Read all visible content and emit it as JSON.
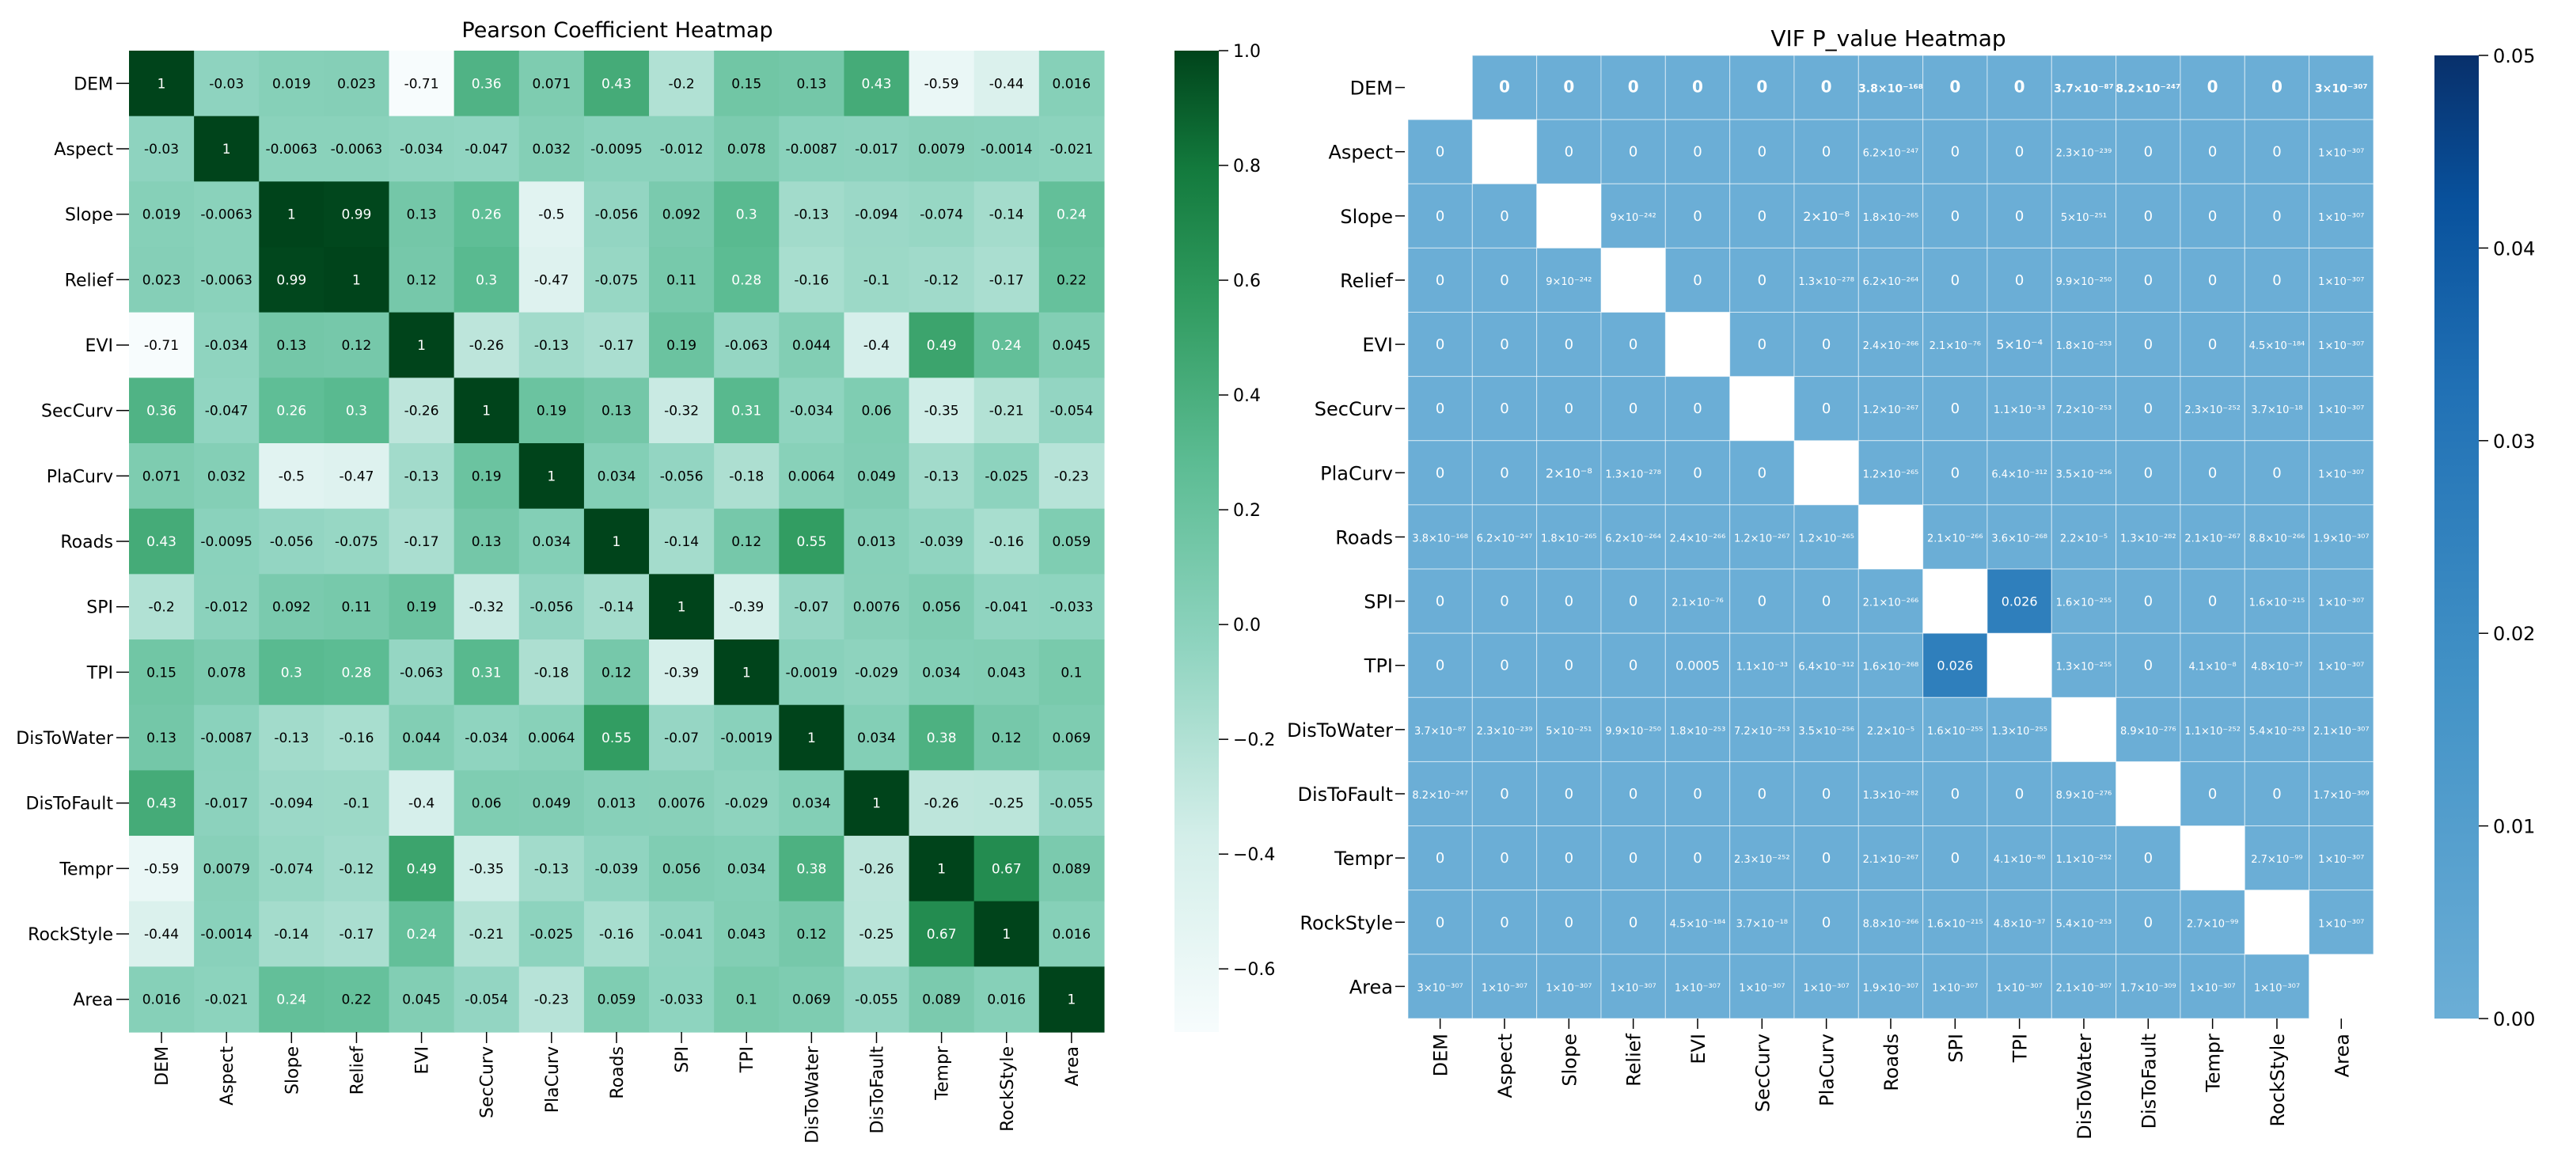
{
  "chart_data": [
    {
      "type": "heatmap",
      "title": "Pearson Coefficient Heatmap",
      "rows": [
        "DEM",
        "Aspect",
        "Slope",
        "Relief",
        "EVI",
        "SecCurv",
        "PlaCurv",
        "Roads",
        "SPI",
        "TPI",
        "DisToWater",
        "DisToFault",
        "Tempr",
        "RockStyle",
        "Area"
      ],
      "columns": [
        "DEM",
        "Aspect",
        "Slope",
        "Relief",
        "EVI",
        "SecCurv",
        "PlaCurv",
        "Roads",
        "SPI",
        "TPI",
        "DisToWater",
        "DisToFault",
        "Tempr",
        "RockStyle",
        "Area"
      ],
      "values": [
        [
          1,
          -0.03,
          0.019,
          0.023,
          -0.71,
          0.36,
          0.071,
          0.43,
          -0.2,
          0.15,
          0.13,
          0.43,
          -0.59,
          -0.44,
          0.016
        ],
        [
          -0.03,
          1,
          -0.0063,
          -0.0063,
          -0.034,
          -0.047,
          0.032,
          -0.0095,
          -0.012,
          0.078,
          -0.0087,
          -0.017,
          0.0079,
          -0.0014,
          -0.021
        ],
        [
          0.019,
          -0.0063,
          1,
          0.99,
          0.13,
          0.26,
          -0.5,
          -0.056,
          0.092,
          0.3,
          -0.13,
          -0.094,
          -0.074,
          -0.14,
          0.24
        ],
        [
          0.023,
          -0.0063,
          0.99,
          1,
          0.12,
          0.3,
          -0.47,
          -0.075,
          0.11,
          0.28,
          -0.16,
          -0.1,
          -0.12,
          -0.17,
          0.22
        ],
        [
          -0.71,
          -0.034,
          0.13,
          0.12,
          1,
          -0.26,
          -0.13,
          -0.17,
          0.19,
          -0.063,
          0.044,
          -0.4,
          0.49,
          0.24,
          0.045
        ],
        [
          0.36,
          -0.047,
          0.26,
          0.3,
          -0.26,
          1,
          0.19,
          0.13,
          -0.32,
          0.31,
          -0.034,
          0.06,
          -0.35,
          -0.21,
          -0.054
        ],
        [
          0.071,
          0.032,
          -0.5,
          -0.47,
          -0.13,
          0.19,
          1,
          0.034,
          -0.056,
          -0.18,
          0.0064,
          0.049,
          -0.13,
          -0.025,
          -0.23
        ],
        [
          0.43,
          -0.0095,
          -0.056,
          -0.075,
          -0.17,
          0.13,
          0.034,
          1,
          -0.14,
          0.12,
          0.55,
          0.013,
          -0.039,
          -0.16,
          0.059
        ],
        [
          -0.2,
          -0.012,
          0.092,
          0.11,
          0.19,
          -0.32,
          -0.056,
          -0.14,
          1,
          -0.39,
          -0.07,
          0.0076,
          0.056,
          -0.041,
          -0.033
        ],
        [
          0.15,
          0.078,
          0.3,
          0.28,
          -0.063,
          0.31,
          -0.18,
          0.12,
          -0.39,
          1,
          -0.0019,
          -0.029,
          0.034,
          0.043,
          0.1
        ],
        [
          0.13,
          -0.0087,
          -0.13,
          -0.16,
          0.044,
          -0.034,
          0.0064,
          0.55,
          -0.07,
          -0.0019,
          1,
          0.034,
          0.38,
          0.12,
          0.069
        ],
        [
          0.43,
          -0.017,
          -0.094,
          -0.1,
          -0.4,
          0.06,
          0.049,
          0.013,
          0.0076,
          -0.029,
          0.034,
          1,
          -0.26,
          -0.25,
          -0.055
        ],
        [
          -0.59,
          0.0079,
          -0.074,
          -0.12,
          0.49,
          -0.35,
          -0.13,
          -0.039,
          0.056,
          0.034,
          0.38,
          -0.26,
          1,
          0.67,
          0.089
        ],
        [
          -0.44,
          -0.0014,
          -0.14,
          -0.17,
          0.24,
          -0.21,
          -0.025,
          -0.16,
          -0.041,
          0.043,
          0.12,
          -0.25,
          0.67,
          1,
          0.016
        ],
        [
          0.016,
          -0.021,
          0.24,
          0.22,
          0.045,
          -0.054,
          -0.23,
          0.059,
          -0.033,
          0.1,
          0.069,
          -0.055,
          0.089,
          0.016,
          1
        ]
      ],
      "labels": [
        [
          "1",
          "-0.03",
          "0.019",
          "0.023",
          "-0.71",
          "0.36",
          "0.071",
          "0.43",
          "-0.2",
          "0.15",
          "0.13",
          "0.43",
          "-0.59",
          "-0.44",
          "0.016"
        ],
        [
          "-0.03",
          "1",
          "-0.0063",
          "-0.0063",
          "-0.034",
          "-0.047",
          "0.032",
          "-0.0095",
          "-0.012",
          "0.078",
          "-0.0087",
          "-0.017",
          "0.0079",
          "-0.0014",
          "-0.021"
        ],
        [
          "0.019",
          "-0.0063",
          "1",
          "0.99",
          "0.13",
          "0.26",
          "-0.5",
          "-0.056",
          "0.092",
          "0.3",
          "-0.13",
          "-0.094",
          "-0.074",
          "-0.14",
          "0.24"
        ],
        [
          "0.023",
          "-0.0063",
          "0.99",
          "1",
          "0.12",
          "0.3",
          "-0.47",
          "-0.075",
          "0.11",
          "0.28",
          "-0.16",
          "-0.1",
          "-0.12",
          "-0.17",
          "0.22"
        ],
        [
          "-0.71",
          "-0.034",
          "0.13",
          "0.12",
          "1",
          "-0.26",
          "-0.13",
          "-0.17",
          "0.19",
          "-0.063",
          "0.044",
          "-0.4",
          "0.49",
          "0.24",
          "0.045"
        ],
        [
          "0.36",
          "-0.047",
          "0.26",
          "0.3",
          "-0.26",
          "1",
          "0.19",
          "0.13",
          "-0.32",
          "0.31",
          "-0.034",
          "0.06",
          "-0.35",
          "-0.21",
          "-0.054"
        ],
        [
          "0.071",
          "0.032",
          "-0.5",
          "-0.47",
          "-0.13",
          "0.19",
          "1",
          "0.034",
          "-0.056",
          "-0.18",
          "0.0064",
          "0.049",
          "-0.13",
          "-0.025",
          "-0.23"
        ],
        [
          "0.43",
          "-0.0095",
          "-0.056",
          "-0.075",
          "-0.17",
          "0.13",
          "0.034",
          "1",
          "-0.14",
          "0.12",
          "0.55",
          "0.013",
          "-0.039",
          "-0.16",
          "0.059"
        ],
        [
          "-0.2",
          "-0.012",
          "0.092",
          "0.11",
          "0.19",
          "-0.32",
          "-0.056",
          "-0.14",
          "1",
          "-0.39",
          "-0.07",
          "0.0076",
          "0.056",
          "-0.041",
          "-0.033"
        ],
        [
          "0.15",
          "0.078",
          "0.3",
          "0.28",
          "-0.063",
          "0.31",
          "-0.18",
          "0.12",
          "-0.39",
          "1",
          "-0.0019",
          "-0.029",
          "0.034",
          "0.043",
          "0.1"
        ],
        [
          "0.13",
          "-0.0087",
          "-0.13",
          "-0.16",
          "0.044",
          "-0.034",
          "0.0064",
          "0.55",
          "-0.07",
          "-0.0019",
          "1",
          "0.034",
          "0.38",
          "0.12",
          "0.069"
        ],
        [
          "0.43",
          "-0.017",
          "-0.094",
          "-0.1",
          "-0.4",
          "0.06",
          "0.049",
          "0.013",
          "0.0076",
          "-0.029",
          "0.034",
          "1",
          "-0.26",
          "-0.25",
          "-0.055"
        ],
        [
          "-0.59",
          "0.0079",
          "-0.074",
          "-0.12",
          "0.49",
          "-0.35",
          "-0.13",
          "-0.039",
          "0.056",
          "0.034",
          "0.38",
          "-0.26",
          "1",
          "0.67",
          "0.089"
        ],
        [
          "-0.44",
          "-0.0014",
          "-0.14",
          "-0.17",
          "0.24",
          "-0.21",
          "-0.025",
          "-0.16",
          "-0.041",
          "0.043",
          "0.12",
          "-0.25",
          "0.67",
          "1",
          "0.016"
        ],
        [
          "0.016",
          "-0.021",
          "0.24",
          "0.22",
          "0.045",
          "-0.054",
          "-0.23",
          "0.059",
          "-0.033",
          "0.1",
          "0.069",
          "-0.055",
          "0.089",
          "0.016",
          "1"
        ]
      ],
      "colorbar": {
        "colormap": "BuGn",
        "range": [
          -0.71,
          1
        ],
        "ticks": [
          -0.6,
          -0.4,
          -0.2,
          0.0,
          0.2,
          0.4,
          0.6,
          0.8,
          1.0
        ],
        "tick_labels": [
          "−0.6",
          "−0.4",
          "−0.2",
          "0.0",
          "0.2",
          "0.4",
          "0.6",
          "0.8",
          "1.0"
        ]
      }
    },
    {
      "type": "heatmap",
      "title": "VIF P_value Heatmap",
      "rows": [
        "DEM",
        "Aspect",
        "Slope",
        "Relief",
        "EVI",
        "SecCurv",
        "PlaCurv",
        "Roads",
        "SPI",
        "TPI",
        "DisToWater",
        "DisToFault",
        "Tempr",
        "RockStyle",
        "Area"
      ],
      "columns": [
        "DEM",
        "Aspect",
        "Slope",
        "Relief",
        "EVI",
        "SecCurv",
        "PlaCurv",
        "Roads",
        "SPI",
        "TPI",
        "DisToWater",
        "DisToFault",
        "Tempr",
        "RockStyle",
        "Area"
      ],
      "values": [
        [
          null,
          0,
          0,
          0,
          0,
          0,
          0,
          3.8e-168,
          0,
          0,
          3.7e-87,
          8.2e-247,
          0,
          0,
          3e-307
        ],
        [
          0,
          null,
          0,
          0,
          0,
          0,
          0,
          6.2e-247,
          0,
          0,
          2.3e-239,
          0,
          0,
          0,
          1e-307
        ],
        [
          0,
          0,
          null,
          9e-242,
          0,
          0,
          2e-08,
          1.8e-265,
          0,
          0,
          5e-251,
          0,
          0,
          0,
          1e-307
        ],
        [
          0,
          0,
          9e-242,
          null,
          0,
          0,
          1.3e-278,
          6.2e-264,
          0,
          0,
          9.9e-250,
          0,
          0,
          0,
          1e-307
        ],
        [
          0,
          0,
          0,
          0,
          null,
          0,
          0,
          2.4e-266,
          2.1e-76,
          0.0005,
          1.8e-253,
          0,
          0,
          4.5e-184,
          1e-307
        ],
        [
          0,
          0,
          0,
          0,
          0,
          null,
          0,
          1.2e-267,
          0,
          1.1e-33,
          7.2e-253,
          0,
          2.3e-252,
          3.7e-18,
          1e-307
        ],
        [
          0,
          0,
          2e-08,
          1.3e-278,
          0,
          0,
          null,
          1.2e-265,
          0,
          6.4e-312,
          3.5e-256,
          0,
          0,
          0,
          1e-307
        ],
        [
          3.8e-168,
          6.2e-247,
          1.8e-265,
          6.2e-264,
          2.4e-266,
          1.2e-267,
          1.2e-265,
          null,
          2.1e-266,
          3.6e-268,
          2.2e-05,
          1.3e-282,
          2.1e-267,
          8.8e-266,
          1.9e-307
        ],
        [
          0,
          0,
          0,
          0,
          2.1e-76,
          0,
          0,
          2.1e-266,
          null,
          0.026,
          1.6e-255,
          0,
          0,
          1.6e-215,
          1e-307
        ],
        [
          0,
          0,
          0,
          0,
          0.0005,
          1.1e-33,
          6.4e-312,
          1.6e-268,
          0.026,
          null,
          1.3e-255,
          0,
          4.1e-08,
          4.8e-37,
          1e-307
        ],
        [
          3.7e-87,
          2.3e-239,
          5e-251,
          9.9e-250,
          1.8e-253,
          7.2e-253,
          3.5e-256,
          2.2e-05,
          1.6e-255,
          1.3e-255,
          null,
          8.9e-276,
          1.1e-252,
          5.4e-253,
          2.1e-307
        ],
        [
          8.2e-247,
          0,
          0,
          0,
          0,
          0,
          0,
          1.3e-282,
          0,
          0,
          8.9e-276,
          null,
          0,
          0,
          1.7e-309
        ],
        [
          0,
          0,
          0,
          0,
          0,
          2.3e-252,
          0,
          2.1e-267,
          0,
          4.1e-80,
          1.1e-252,
          0,
          null,
          2.7e-99,
          1e-307
        ],
        [
          0,
          0,
          0,
          0,
          4.5e-184,
          3.7e-18,
          0,
          8.8e-266,
          1.6e-215,
          4.8e-37,
          5.4e-253,
          0,
          2.7e-99,
          null,
          1e-307
        ],
        [
          3e-307,
          1e-307,
          1e-307,
          1e-307,
          1e-307,
          1e-307,
          1e-307,
          1.9e-307,
          1e-307,
          1e-307,
          2.1e-307,
          1.7e-309,
          1e-307,
          1e-307,
          null
        ]
      ],
      "labels": [
        [
          "",
          "0",
          "0",
          "0",
          "0",
          "0",
          "0",
          "3.8×10⁻¹⁶⁸",
          "0",
          "0",
          "3.7×10⁻⁸⁷",
          "8.2×10⁻²⁴⁷",
          "0",
          "0",
          "3×10⁻³⁰⁷"
        ],
        [
          "0",
          "",
          "0",
          "0",
          "0",
          "0",
          "0",
          "6.2×10⁻²⁴⁷",
          "0",
          "0",
          "2.3×10⁻²³⁹",
          "0",
          "0",
          "0",
          "1×10⁻³⁰⁷"
        ],
        [
          "0",
          "0",
          "",
          "9×10⁻²⁴²",
          "0",
          "0",
          "2×10⁻⁸",
          "1.8×10⁻²⁶⁵",
          "0",
          "0",
          "5×10⁻²⁵¹",
          "0",
          "0",
          "0",
          "1×10⁻³⁰⁷"
        ],
        [
          "0",
          "0",
          "9×10⁻²⁴²",
          "",
          "0",
          "0",
          "1.3×10⁻²⁷⁸",
          "6.2×10⁻²⁶⁴",
          "0",
          "0",
          "9.9×10⁻²⁵⁰",
          "0",
          "0",
          "0",
          "1×10⁻³⁰⁷"
        ],
        [
          "0",
          "0",
          "0",
          "0",
          "",
          "0",
          "0",
          "2.4×10⁻²⁶⁶",
          "2.1×10⁻⁷⁶",
          "5×10⁻⁴",
          "1.8×10⁻²⁵³",
          "0",
          "0",
          "4.5×10⁻¹⁸⁴",
          "1×10⁻³⁰⁷"
        ],
        [
          "0",
          "0",
          "0",
          "0",
          "0",
          "",
          "0",
          "1.2×10⁻²⁶⁷",
          "0",
          "1.1×10⁻³³",
          "7.2×10⁻²⁵³",
          "0",
          "2.3×10⁻²⁵²",
          "3.7×10⁻¹⁸",
          "1×10⁻³⁰⁷"
        ],
        [
          "0",
          "0",
          "2×10⁻⁸",
          "1.3×10⁻²⁷⁸",
          "0",
          "0",
          "",
          "1.2×10⁻²⁶⁵",
          "0",
          "6.4×10⁻³¹²",
          "3.5×10⁻²⁵⁶",
          "0",
          "0",
          "0",
          "1×10⁻³⁰⁷"
        ],
        [
          "3.8×10⁻¹⁶⁸",
          "6.2×10⁻²⁴⁷",
          "1.8×10⁻²⁶⁵",
          "6.2×10⁻²⁶⁴",
          "2.4×10⁻²⁶⁶",
          "1.2×10⁻²⁶⁷",
          "1.2×10⁻²⁶⁵",
          "",
          "2.1×10⁻²⁶⁶",
          "3.6×10⁻²⁶⁸",
          "2.2×10⁻⁵",
          "1.3×10⁻²⁸²",
          "2.1×10⁻²⁶⁷",
          "8.8×10⁻²⁶⁶",
          "1.9×10⁻³⁰⁷"
        ],
        [
          "0",
          "0",
          "0",
          "0",
          "2.1×10⁻⁷⁶",
          "0",
          "0",
          "2.1×10⁻²⁶⁶",
          "",
          "0.026",
          "1.6×10⁻²⁵⁵",
          "0",
          "0",
          "1.6×10⁻²¹⁵",
          "1×10⁻³⁰⁷"
        ],
        [
          "0",
          "0",
          "0",
          "0",
          "0.0005",
          "1.1×10⁻³³",
          "6.4×10⁻³¹²",
          "1.6×10⁻²⁶⁸",
          "0.026",
          "",
          "1.3×10⁻²⁵⁵",
          "0",
          "4.1×10⁻⁸",
          "4.8×10⁻³⁷",
          "1×10⁻³⁰⁷"
        ],
        [
          "3.7×10⁻⁸⁷",
          "2.3×10⁻²³⁹",
          "5×10⁻²⁵¹",
          "9.9×10⁻²⁵⁰",
          "1.8×10⁻²⁵³",
          "7.2×10⁻²⁵³",
          "3.5×10⁻²⁵⁶",
          "2.2×10⁻⁵",
          "1.6×10⁻²⁵⁵",
          "1.3×10⁻²⁵⁵",
          "",
          "8.9×10⁻²⁷⁶",
          "1.1×10⁻²⁵²",
          "5.4×10⁻²⁵³",
          "2.1×10⁻³⁰⁷"
        ],
        [
          "8.2×10⁻²⁴⁷",
          "0",
          "0",
          "0",
          "0",
          "0",
          "0",
          "1.3×10⁻²⁸²",
          "0",
          "0",
          "8.9×10⁻²⁷⁶",
          "",
          "0",
          "0",
          "1.7×10⁻³⁰⁹"
        ],
        [
          "0",
          "0",
          "0",
          "0",
          "0",
          "2.3×10⁻²⁵²",
          "0",
          "2.1×10⁻²⁶⁷",
          "0",
          "4.1×10⁻⁸⁰",
          "1.1×10⁻²⁵²",
          "0",
          "",
          "2.7×10⁻⁹⁹",
          "1×10⁻³⁰⁷"
        ],
        [
          "0",
          "0",
          "0",
          "0",
          "4.5×10⁻¹⁸⁴",
          "3.7×10⁻¹⁸",
          "0",
          "8.8×10⁻²⁶⁶",
          "1.6×10⁻²¹⁵",
          "4.8×10⁻³⁷",
          "5.4×10⁻²⁵³",
          "0",
          "2.7×10⁻⁹⁹",
          "",
          "1×10⁻³⁰⁷"
        ],
        [
          "3×10⁻³⁰⁷",
          "1×10⁻³⁰⁷",
          "1×10⁻³⁰⁷",
          "1×10⁻³⁰⁷",
          "1×10⁻³⁰⁷",
          "1×10⁻³⁰⁷",
          "1×10⁻³⁰⁷",
          "1.9×10⁻³⁰⁷",
          "1×10⁻³⁰⁷",
          "1×10⁻³⁰⁷",
          "2.1×10⁻³⁰⁷",
          "1.7×10⁻³⁰⁹",
          "1×10⁻³⁰⁷",
          "1×10⁻³⁰⁷",
          ""
        ]
      ],
      "colorbar": {
        "colormap": "Blues",
        "range": [
          0,
          0.05
        ],
        "ticks": [
          0.0,
          0.01,
          0.02,
          0.03,
          0.04,
          0.05
        ],
        "tick_labels": [
          "0.00",
          "0.01",
          "0.02",
          "0.03",
          "0.04",
          "0.05"
        ]
      }
    }
  ]
}
